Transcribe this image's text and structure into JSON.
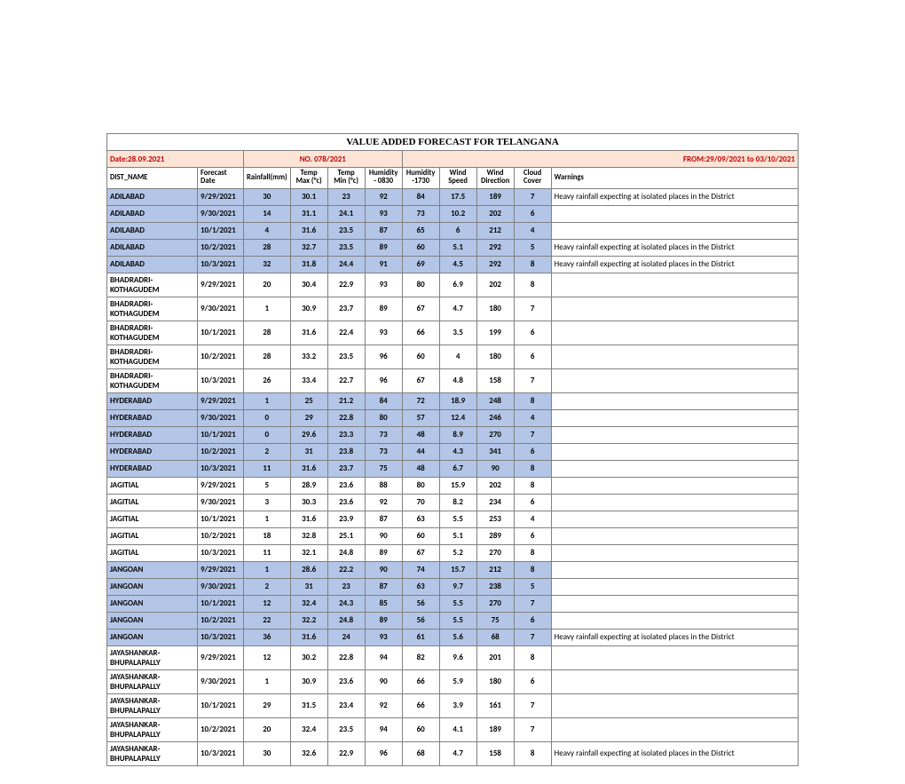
{
  "title": "VALUE ADDED FORECAST FOR TELANGANA",
  "meta": {
    "date": "Date:28.09.2021",
    "no": "NO. 078/2021",
    "from": "FROM:29/09/2021 to 03/10/2021"
  },
  "headers": {
    "dist": "DIST_NAME",
    "fdate": "Forecast Date",
    "rainfall": "Rainfall(mm)",
    "tmax": "Temp Max (°c)",
    "tmin": "Temp Min (°c)",
    "h0830": "Humidity - 0830",
    "h1730": "Humidity -1730",
    "wspd": "Wind Speed",
    "wdir": "Wind Direction",
    "cloud": "Cloud Cover",
    "warn": "Warnings"
  },
  "warn_text": "Heavy rainfall expecting at isolated places in the District",
  "rows": [
    {
      "d": "ADILABAD",
      "f": "9/29/2021",
      "r": "30",
      "tx": "30.1",
      "tn": "23",
      "h1": "92",
      "h2": "84",
      "ws": "17.5",
      "wd": "189",
      "c": "7",
      "w": true,
      "s": true
    },
    {
      "d": "ADILABAD",
      "f": "9/30/2021",
      "r": "14",
      "tx": "31.1",
      "tn": "24.1",
      "h1": "93",
      "h2": "73",
      "ws": "10.2",
      "wd": "202",
      "c": "6",
      "w": false,
      "s": true
    },
    {
      "d": "ADILABAD",
      "f": "10/1/2021",
      "r": "4",
      "tx": "31.6",
      "tn": "23.5",
      "h1": "87",
      "h2": "65",
      "ws": "6",
      "wd": "212",
      "c": "4",
      "w": false,
      "s": true
    },
    {
      "d": "ADILABAD",
      "f": "10/2/2021",
      "r": "28",
      "tx": "32.7",
      "tn": "23.5",
      "h1": "89",
      "h2": "60",
      "ws": "5.1",
      "wd": "292",
      "c": "5",
      "w": true,
      "s": true
    },
    {
      "d": "ADILABAD",
      "f": "10/3/2021",
      "r": "32",
      "tx": "31.8",
      "tn": "24.4",
      "h1": "91",
      "h2": "69",
      "ws": "4.5",
      "wd": "292",
      "c": "8",
      "w": true,
      "s": true
    },
    {
      "d": "BHADRADRI-KOTHAGUDEM",
      "f": "9/29/2021",
      "r": "20",
      "tx": "30.4",
      "tn": "22.9",
      "h1": "93",
      "h2": "80",
      "ws": "6.9",
      "wd": "202",
      "c": "8",
      "w": false,
      "s": false
    },
    {
      "d": "BHADRADRI-KOTHAGUDEM",
      "f": "9/30/2021",
      "r": "1",
      "tx": "30.9",
      "tn": "23.7",
      "h1": "89",
      "h2": "67",
      "ws": "4.7",
      "wd": "180",
      "c": "7",
      "w": false,
      "s": false
    },
    {
      "d": "BHADRADRI-KOTHAGUDEM",
      "f": "10/1/2021",
      "r": "28",
      "tx": "31.6",
      "tn": "22.4",
      "h1": "93",
      "h2": "66",
      "ws": "3.5",
      "wd": "199",
      "c": "6",
      "w": false,
      "s": false
    },
    {
      "d": "BHADRADRI-KOTHAGUDEM",
      "f": "10/2/2021",
      "r": "28",
      "tx": "33.2",
      "tn": "23.5",
      "h1": "96",
      "h2": "60",
      "ws": "4",
      "wd": "180",
      "c": "6",
      "w": false,
      "s": false
    },
    {
      "d": "BHADRADRI-KOTHAGUDEM",
      "f": "10/3/2021",
      "r": "26",
      "tx": "33.4",
      "tn": "22.7",
      "h1": "96",
      "h2": "67",
      "ws": "4.8",
      "wd": "158",
      "c": "7",
      "w": false,
      "s": false
    },
    {
      "d": "HYDERABAD",
      "f": "9/29/2021",
      "r": "1",
      "tx": "25",
      "tn": "21.2",
      "h1": "84",
      "h2": "72",
      "ws": "18.9",
      "wd": "248",
      "c": "8",
      "w": false,
      "s": true
    },
    {
      "d": "HYDERABAD",
      "f": "9/30/2021",
      "r": "0",
      "tx": "29",
      "tn": "22.8",
      "h1": "80",
      "h2": "57",
      "ws": "12.4",
      "wd": "246",
      "c": "4",
      "w": false,
      "s": true
    },
    {
      "d": "HYDERABAD",
      "f": "10/1/2021",
      "r": "0",
      "tx": "29.6",
      "tn": "23.3",
      "h1": "73",
      "h2": "48",
      "ws": "8.9",
      "wd": "270",
      "c": "7",
      "w": false,
      "s": true
    },
    {
      "d": "HYDERABAD",
      "f": "10/2/2021",
      "r": "2",
      "tx": "31",
      "tn": "23.8",
      "h1": "73",
      "h2": "44",
      "ws": "4.3",
      "wd": "341",
      "c": "6",
      "w": false,
      "s": true
    },
    {
      "d": "HYDERABAD",
      "f": "10/3/2021",
      "r": "11",
      "tx": "31.6",
      "tn": "23.7",
      "h1": "75",
      "h2": "48",
      "ws": "6.7",
      "wd": "90",
      "c": "8",
      "w": false,
      "s": true
    },
    {
      "d": "JAGITIAL",
      "f": "9/29/2021",
      "r": "5",
      "tx": "28.9",
      "tn": "23.6",
      "h1": "88",
      "h2": "80",
      "ws": "15.9",
      "wd": "202",
      "c": "8",
      "w": false,
      "s": false
    },
    {
      "d": "JAGITIAL",
      "f": "9/30/2021",
      "r": "3",
      "tx": "30.3",
      "tn": "23.6",
      "h1": "92",
      "h2": "70",
      "ws": "8.2",
      "wd": "234",
      "c": "6",
      "w": false,
      "s": false
    },
    {
      "d": "JAGITIAL",
      "f": "10/1/2021",
      "r": "1",
      "tx": "31.6",
      "tn": "23.9",
      "h1": "87",
      "h2": "63",
      "ws": "5.5",
      "wd": "253",
      "c": "4",
      "w": false,
      "s": false
    },
    {
      "d": "JAGITIAL",
      "f": "10/2/2021",
      "r": "18",
      "tx": "32.8",
      "tn": "25.1",
      "h1": "90",
      "h2": "60",
      "ws": "5.1",
      "wd": "289",
      "c": "6",
      "w": false,
      "s": false
    },
    {
      "d": "JAGITIAL",
      "f": "10/3/2021",
      "r": "11",
      "tx": "32.1",
      "tn": "24.8",
      "h1": "89",
      "h2": "67",
      "ws": "5.2",
      "wd": "270",
      "c": "8",
      "w": false,
      "s": false
    },
    {
      "d": "JANGOAN",
      "f": "9/29/2021",
      "r": "1",
      "tx": "28.6",
      "tn": "22.2",
      "h1": "90",
      "h2": "74",
      "ws": "15.7",
      "wd": "212",
      "c": "8",
      "w": false,
      "s": true
    },
    {
      "d": "JANGOAN",
      "f": "9/30/2021",
      "r": "2",
      "tx": "31",
      "tn": "23",
      "h1": "87",
      "h2": "63",
      "ws": "9.7",
      "wd": "238",
      "c": "5",
      "w": false,
      "s": true
    },
    {
      "d": "JANGOAN",
      "f": "10/1/2021",
      "r": "12",
      "tx": "32.4",
      "tn": "24.3",
      "h1": "85",
      "h2": "56",
      "ws": "5.5",
      "wd": "270",
      "c": "7",
      "w": false,
      "s": true
    },
    {
      "d": "JANGOAN",
      "f": "10/2/2021",
      "r": "22",
      "tx": "32.2",
      "tn": "24.8",
      "h1": "89",
      "h2": "56",
      "ws": "5.5",
      "wd": "75",
      "c": "6",
      "w": false,
      "s": true
    },
    {
      "d": "JANGOAN",
      "f": "10/3/2021",
      "r": "36",
      "tx": "31.6",
      "tn": "24",
      "h1": "93",
      "h2": "61",
      "ws": "5.6",
      "wd": "68",
      "c": "7",
      "w": true,
      "s": true
    },
    {
      "d": "JAYASHANKAR-BHUPALAPALLY",
      "f": "9/29/2021",
      "r": "12",
      "tx": "30.2",
      "tn": "22.8",
      "h1": "94",
      "h2": "82",
      "ws": "9.6",
      "wd": "201",
      "c": "8",
      "w": false,
      "s": false
    },
    {
      "d": "JAYASHANKAR-BHUPALAPALLY",
      "f": "9/30/2021",
      "r": "1",
      "tx": "30.9",
      "tn": "23.6",
      "h1": "90",
      "h2": "66",
      "ws": "5.9",
      "wd": "180",
      "c": "6",
      "w": false,
      "s": false
    },
    {
      "d": "JAYASHANKAR-BHUPALAPALLY",
      "f": "10/1/2021",
      "r": "29",
      "tx": "31.5",
      "tn": "23.4",
      "h1": "92",
      "h2": "66",
      "ws": "3.9",
      "wd": "161",
      "c": "7",
      "w": false,
      "s": false
    },
    {
      "d": "JAYASHANKAR-BHUPALAPALLY",
      "f": "10/2/2021",
      "r": "20",
      "tx": "32.4",
      "tn": "23.5",
      "h1": "94",
      "h2": "60",
      "ws": "4.1",
      "wd": "189",
      "c": "7",
      "w": false,
      "s": false
    },
    {
      "d": "JAYASHANKAR-BHUPALAPALLY",
      "f": "10/3/2021",
      "r": "30",
      "tx": "32.6",
      "tn": "22.9",
      "h1": "96",
      "h2": "68",
      "ws": "4.7",
      "wd": "158",
      "c": "8",
      "w": true,
      "s": false
    }
  ]
}
